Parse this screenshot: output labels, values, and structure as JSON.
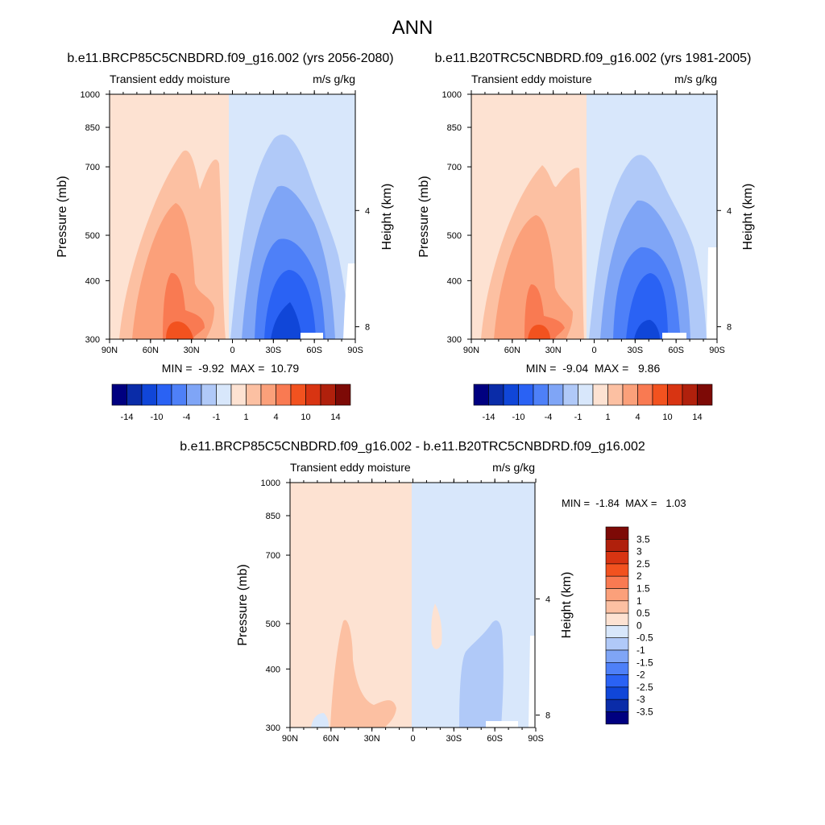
{
  "page": {
    "title": "ANN"
  },
  "chart_data": [
    {
      "type": "heatmap",
      "id": "future",
      "title": "b.e11.BRCP85C5CNBDRD.f09_g16.002 (yrs 2056-2080)",
      "left_label": "Transient eddy moisture",
      "right_label": "m/s g/kg",
      "ylabel": "Pressure (mb)",
      "y2label": "Height (km)",
      "xticks": [
        "90N",
        "60N",
        "30N",
        "0",
        "30S",
        "60S",
        "90S"
      ],
      "xlim": [
        90,
        -90
      ],
      "ylim": [
        1000,
        300
      ],
      "yscale": "log",
      "yticks": [
        "300",
        "400",
        "500",
        "700",
        "850",
        "1000"
      ],
      "y2ticks": [
        "8",
        "4"
      ],
      "minmax": "MIN =  -9.92  MAX =  10.79",
      "min": -9.92,
      "max": 10.79,
      "colorbar": {
        "orientation": "horizontal",
        "tick_labels": [
          "-14",
          "-10",
          "-4",
          "-1",
          "1",
          "4",
          "10",
          "14"
        ],
        "colors": [
          "#000080",
          "#0a2ca8",
          "#1046d8",
          "#2a62f4",
          "#4e80f8",
          "#7fa5f6",
          "#b0c9f8",
          "#d8e7fb",
          "#fde2d2",
          "#fcc0a2",
          "#fba07a",
          "#f97a52",
          "#f2521f",
          "#d83412",
          "#b0200c",
          "#7d0a06"
        ]
      }
    },
    {
      "type": "heatmap",
      "id": "historical",
      "title": "b.e11.B20TRC5CNBDRD.f09_g16.002 (yrs 1981-2005)",
      "left_label": "Transient eddy moisture",
      "right_label": "m/s g/kg",
      "ylabel": "Pressure (mb)",
      "y2label": "Height (km)",
      "xticks": [
        "90N",
        "60N",
        "30N",
        "0",
        "30S",
        "60S",
        "90S"
      ],
      "xlim": [
        90,
        -90
      ],
      "ylim": [
        1000,
        300
      ],
      "yscale": "log",
      "yticks": [
        "300",
        "400",
        "500",
        "700",
        "850",
        "1000"
      ],
      "y2ticks": [
        "8",
        "4"
      ],
      "minmax": "MIN =  -9.04  MAX =   9.86",
      "min": -9.04,
      "max": 9.86,
      "colorbar": {
        "orientation": "horizontal",
        "tick_labels": [
          "-14",
          "-10",
          "-4",
          "-1",
          "1",
          "4",
          "10",
          "14"
        ],
        "colors": [
          "#000080",
          "#0a2ca8",
          "#1046d8",
          "#2a62f4",
          "#4e80f8",
          "#7fa5f6",
          "#b0c9f8",
          "#d8e7fb",
          "#fde2d2",
          "#fcc0a2",
          "#fba07a",
          "#f97a52",
          "#f2521f",
          "#d83412",
          "#b0200c",
          "#7d0a06"
        ]
      }
    },
    {
      "type": "heatmap",
      "id": "difference",
      "title": "b.e11.BRCP85C5CNBDRD.f09_g16.002 - b.e11.B20TRC5CNBDRD.f09_g16.002",
      "left_label": "Transient eddy moisture",
      "right_label": "m/s g/kg",
      "ylabel": "Pressure (mb)",
      "y2label": "Height (km)",
      "xticks": [
        "90N",
        "60N",
        "30N",
        "0",
        "30S",
        "60S",
        "90S"
      ],
      "xlim": [
        90,
        -90
      ],
      "ylim": [
        1000,
        300
      ],
      "yscale": "log",
      "yticks": [
        "300",
        "400",
        "500",
        "700",
        "850",
        "1000"
      ],
      "y2ticks": [
        "8",
        "4"
      ],
      "minmax": "MIN =  -1.84  MAX =   1.03",
      "min": -1.84,
      "max": 1.03,
      "colorbar": {
        "orientation": "vertical",
        "tick_labels": [
          "3.5",
          "3",
          "2.5",
          "2",
          "1.5",
          "1",
          "0.5",
          "0",
          "-0.5",
          "-1",
          "-1.5",
          "-2",
          "-2.5",
          "-3",
          "-3.5"
        ],
        "colors": [
          "#7d0a06",
          "#b0200c",
          "#d83412",
          "#f2521f",
          "#f97a52",
          "#fba07a",
          "#fcc0a2",
          "#fde2d2",
          "#d8e7fb",
          "#b0c9f8",
          "#7fa5f6",
          "#4e80f8",
          "#2a62f4",
          "#1046d8",
          "#0a2ca8",
          "#000080"
        ]
      }
    }
  ]
}
